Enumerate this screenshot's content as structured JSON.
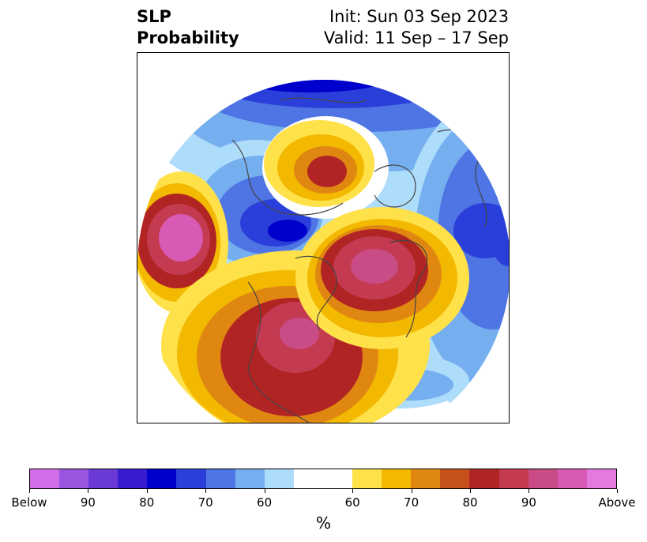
{
  "title": {
    "left_line1": "SLP",
    "left_line2": "Probability",
    "right_line1": "Init: Sun 03 Sep 2023",
    "right_line2": "Valid: 11 Sep – 17 Sep"
  },
  "colorbar": {
    "colors": [
      "#d36ee8",
      "#9b55e0",
      "#6a3ad6",
      "#3a1bd2",
      "#0000cd",
      "#2a3fd9",
      "#4f74e3",
      "#75aff0",
      "#aedcfb",
      "#ffffff",
      "#ffffff",
      "#ffe14a",
      "#f3b800",
      "#e08712",
      "#c6521b",
      "#b12424",
      "#c33a51",
      "#c94c86",
      "#d95ab4",
      "#e47ade"
    ],
    "tick_labels": [
      "Below",
      "90",
      "80",
      "70",
      "60",
      "60",
      "70",
      "80",
      "90",
      "Above"
    ],
    "unit": "%"
  },
  "map": {
    "projection": "north-polar-stereographic",
    "features": [
      {
        "name": "ne-pacific-above-core",
        "category": "above",
        "max_level": "Above"
      },
      {
        "name": "canada-greenland-above-core",
        "category": "above",
        "max_level": "90"
      },
      {
        "name": "central-us-above-core",
        "category": "above",
        "max_level": "90"
      },
      {
        "name": "siberia-above-core",
        "category": "above",
        "max_level": "80"
      },
      {
        "name": "western-russia-below-core",
        "category": "below",
        "max_level": "80"
      },
      {
        "name": "arctic-below-core",
        "category": "below",
        "max_level": "80"
      },
      {
        "name": "bering-sea-below-core",
        "category": "below",
        "max_level": "80"
      },
      {
        "name": "north-atlantic-below",
        "category": "below",
        "max_level": "60"
      }
    ]
  }
}
